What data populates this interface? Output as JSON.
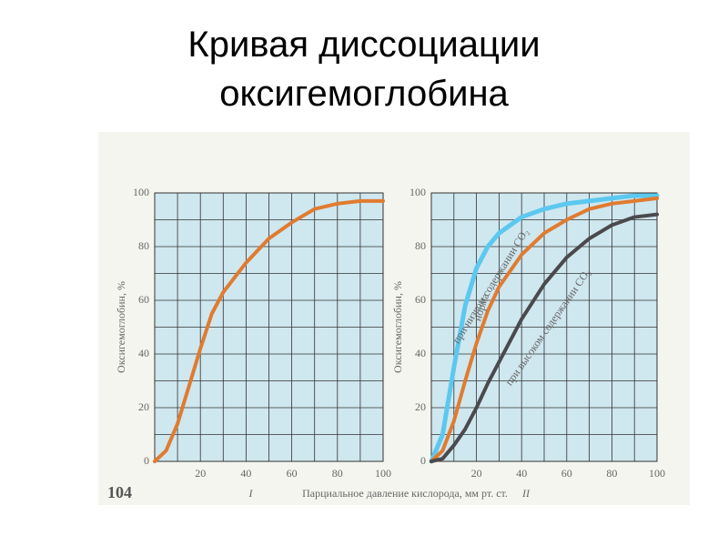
{
  "slide_title": "Кривая диссоциации оксигемоглобина",
  "page_number": "104",
  "xlabel": "Парциальное давление кислорода, мм  рт. ст.",
  "chart_data": [
    {
      "type": "line",
      "label": "I",
      "ylabel": "Оксигемоглобин, %",
      "x": [
        0,
        5,
        10,
        15,
        20,
        25,
        30,
        40,
        50,
        60,
        70,
        80,
        90,
        100
      ],
      "values": [
        0,
        4,
        14,
        28,
        42,
        55,
        63,
        74,
        83,
        89,
        94,
        96,
        97,
        97
      ],
      "color": "#e07b30",
      "xlim": [
        0,
        100
      ],
      "ylim": [
        0,
        100
      ],
      "xticks": [
        20,
        40,
        60,
        80,
        100
      ],
      "yticks": [
        0,
        20,
        40,
        60,
        80,
        100
      ],
      "grid": true
    },
    {
      "type": "line",
      "label": "II",
      "ylabel": "Оксигемоглобин, %",
      "x": [
        0,
        5,
        10,
        15,
        20,
        25,
        30,
        40,
        50,
        60,
        70,
        80,
        90,
        100
      ],
      "series": [
        {
          "name": "при низком содержании CO₂",
          "color": "#5cc8f0",
          "values": [
            0,
            10,
            35,
            58,
            72,
            80,
            85,
            91,
            94,
            96,
            97,
            98,
            99,
            99
          ]
        },
        {
          "name": "норма",
          "color": "#e07b30",
          "values": [
            0,
            4,
            15,
            30,
            44,
            56,
            65,
            77,
            85,
            90,
            94,
            96,
            97,
            98
          ]
        },
        {
          "name": "при высоком содержании CO₂",
          "color": "#4a4a4e",
          "values": [
            0,
            1,
            6,
            12,
            20,
            29,
            37,
            53,
            66,
            76,
            83,
            88,
            91,
            92
          ]
        }
      ],
      "xlim": [
        0,
        100
      ],
      "ylim": [
        0,
        100
      ],
      "xticks": [
        20,
        40,
        60,
        80,
        100
      ],
      "yticks": [
        0,
        20,
        40,
        60,
        80,
        100
      ],
      "grid": true
    }
  ]
}
